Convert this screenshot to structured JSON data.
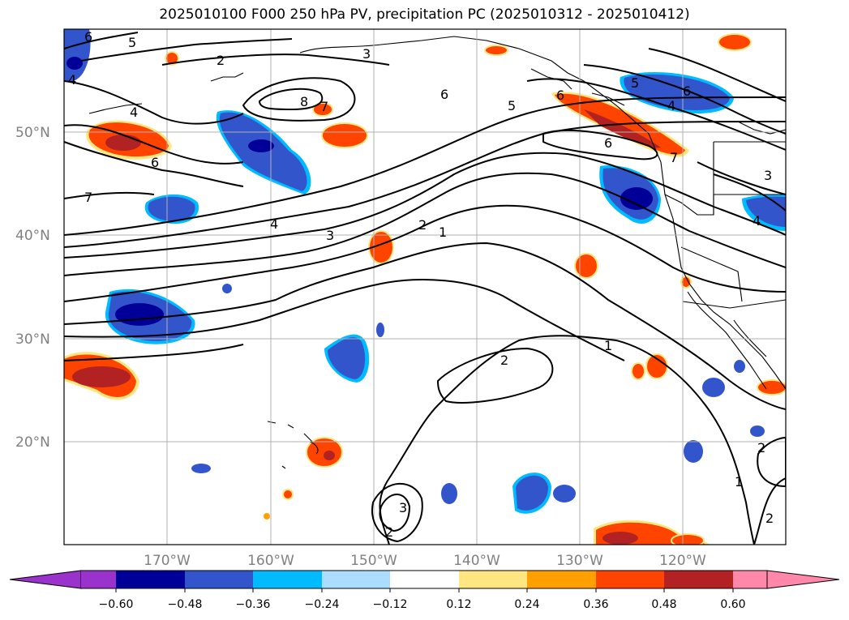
{
  "title": "2025010100 F000 250 hPa PV, precipitation PC (2025010312 - 2025010412)",
  "latitude_labels": [
    "50°N",
    "40°N",
    "30°N",
    "20°N"
  ],
  "longitude_labels": [
    "170°W",
    "160°W",
    "150°W",
    "140°W",
    "130°W",
    "120°W"
  ],
  "contour_labels": [
    "6",
    "5",
    "4",
    "2",
    "3",
    "8",
    "7",
    "6",
    "5",
    "6",
    "4",
    "7",
    "6",
    "6",
    "7",
    "4",
    "3",
    "2",
    "1",
    "3",
    "2",
    "1",
    "2",
    "3",
    "2",
    "1",
    "2",
    "5",
    "4",
    "6",
    "4"
  ],
  "colorbar": {
    "tick_labels": [
      "−0.60",
      "−0.48",
      "−0.36",
      "−0.24",
      "−0.12",
      "0.12",
      "0.24",
      "0.36",
      "0.48",
      "0.60"
    ],
    "colors": [
      "#9933cc",
      "#000099",
      "#3355cc",
      "#00bbff",
      "#aaddff",
      "#ffffff",
      "#ffe680",
      "#ffa000",
      "#ff4400",
      "#b22222",
      "#ff88aa"
    ]
  },
  "colors": {
    "negative": "#3355cc",
    "negative_strong": "#000099",
    "positive": "#ff4400",
    "positive_strong": "#b22222",
    "grid": "#b0b0b0",
    "tick_label": "#808080"
  }
}
